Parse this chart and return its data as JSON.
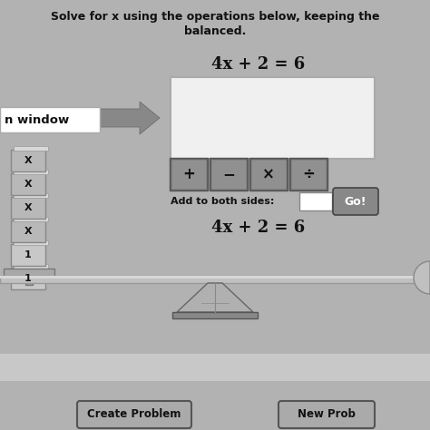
{
  "bg_color": "#b2b2b2",
  "title_line1": "Solve for x using the operations below, keeping the",
  "title_line2": "balanced.",
  "equation_top": "4x + 2 = 6",
  "equation_bottom": "4x + 2 = 6",
  "window_label": "n window",
  "operators": [
    "+",
    "−",
    "×",
    "÷"
  ],
  "add_label": "Add to both sides:",
  "go_button": "Go!",
  "btn1": "Create Problem",
  "btn2": "New Prob",
  "panel_white": "#f0f0f0",
  "button_bg": "#909090",
  "go_btn_bg": "#888888",
  "white": "#ffffff",
  "dark": "#111111",
  "light_gray": "#c8c8c8",
  "arrow_color": "#888888",
  "block_labels": [
    "1",
    "1",
    "X",
    "X",
    "X",
    "X"
  ],
  "beam_color": "#c0c0c0",
  "fulcrum_color": "#a0a0a0"
}
